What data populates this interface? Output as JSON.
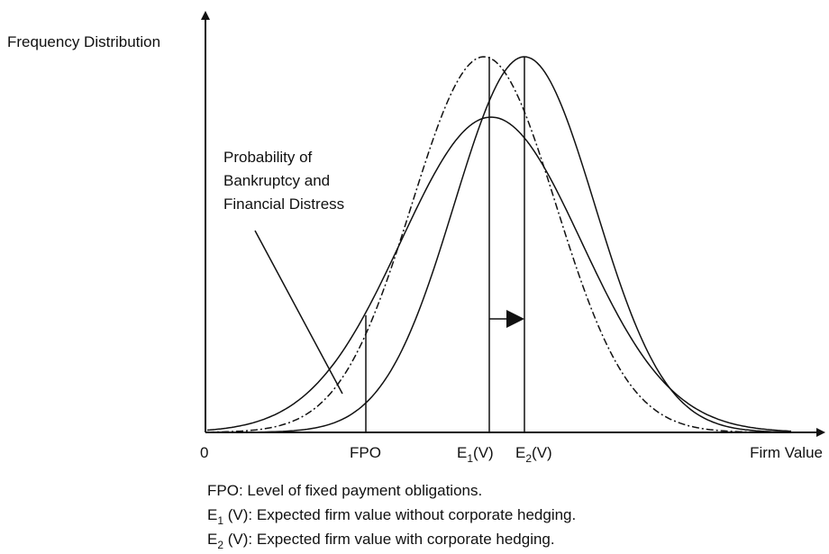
{
  "axes": {
    "y_label": "Frequency Distribution",
    "x_label": "Firm Value",
    "origin": "0"
  },
  "markers": [
    {
      "base": "FPO"
    },
    {
      "base": "E",
      "sub": "1",
      "rest": "(V)"
    },
    {
      "base": "E",
      "sub": "2",
      "rest": "(V)"
    }
  ],
  "annotation": [
    "Probability of",
    "Bankruptcy and",
    "Financial Distress"
  ],
  "notes": [
    {
      "base": "FPO: Level of fixed payment obligations."
    },
    {
      "base": "E",
      "sub": "1",
      "rest": " (V): Expected firm value without corporate hedging."
    },
    {
      "base": "E",
      "sub": "2",
      "rest": " (V): Expected firm value with corporate hedging."
    }
  ]
}
